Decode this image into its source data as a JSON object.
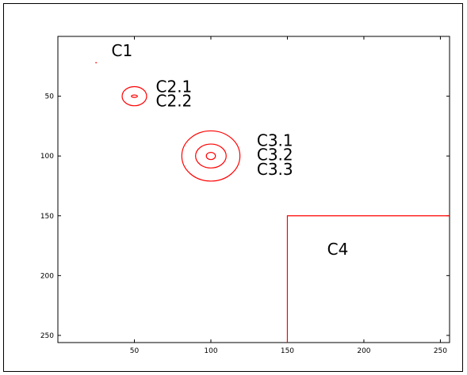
{
  "chart_data": {
    "type": "contour",
    "title": "",
    "xlabel": "",
    "ylabel": "",
    "xlim": [
      0,
      256
    ],
    "ylim": [
      256,
      0
    ],
    "y_axis_inverted": true,
    "grid": false,
    "legend": "none",
    "xticks": [
      50,
      100,
      150,
      200,
      250
    ],
    "yticks": [
      50,
      100,
      150,
      200,
      250
    ],
    "line_color": "#ff0000",
    "contours": [
      {
        "name": "C1",
        "shape": "point",
        "x": 25,
        "y": 22
      },
      {
        "name": "C2.1",
        "shape": "ellipse",
        "cx": 50,
        "cy": 50,
        "rx": 8,
        "ry": 8
      },
      {
        "name": "C2.2",
        "shape": "ellipse",
        "cx": 50,
        "cy": 50,
        "rx": 2,
        "ry": 1
      },
      {
        "name": "C3.1",
        "shape": "ellipse",
        "cx": 100,
        "cy": 100,
        "rx": 19,
        "ry": 21
      },
      {
        "name": "C3.2",
        "shape": "ellipse",
        "cx": 100,
        "cy": 100,
        "rx": 10,
        "ry": 10
      },
      {
        "name": "C3.3",
        "shape": "ellipse",
        "cx": 100,
        "cy": 100,
        "rx": 3,
        "ry": 3
      },
      {
        "name": "C4",
        "shape": "polyline",
        "points": [
          [
            150,
            256
          ],
          [
            150,
            150
          ],
          [
            256,
            150
          ]
        ]
      }
    ],
    "annotations": [
      {
        "text": "C1",
        "x": 35,
        "y": 12
      },
      {
        "text": "C2.1",
        "x": 64,
        "y": 42
      },
      {
        "text": "C2.2",
        "x": 64,
        "y": 54
      },
      {
        "text": "C3.1",
        "x": 130,
        "y": 87
      },
      {
        "text": "C3.2",
        "x": 130,
        "y": 99
      },
      {
        "text": "C3.3",
        "x": 130,
        "y": 111
      },
      {
        "text": "C4",
        "x": 176,
        "y": 178
      }
    ]
  }
}
